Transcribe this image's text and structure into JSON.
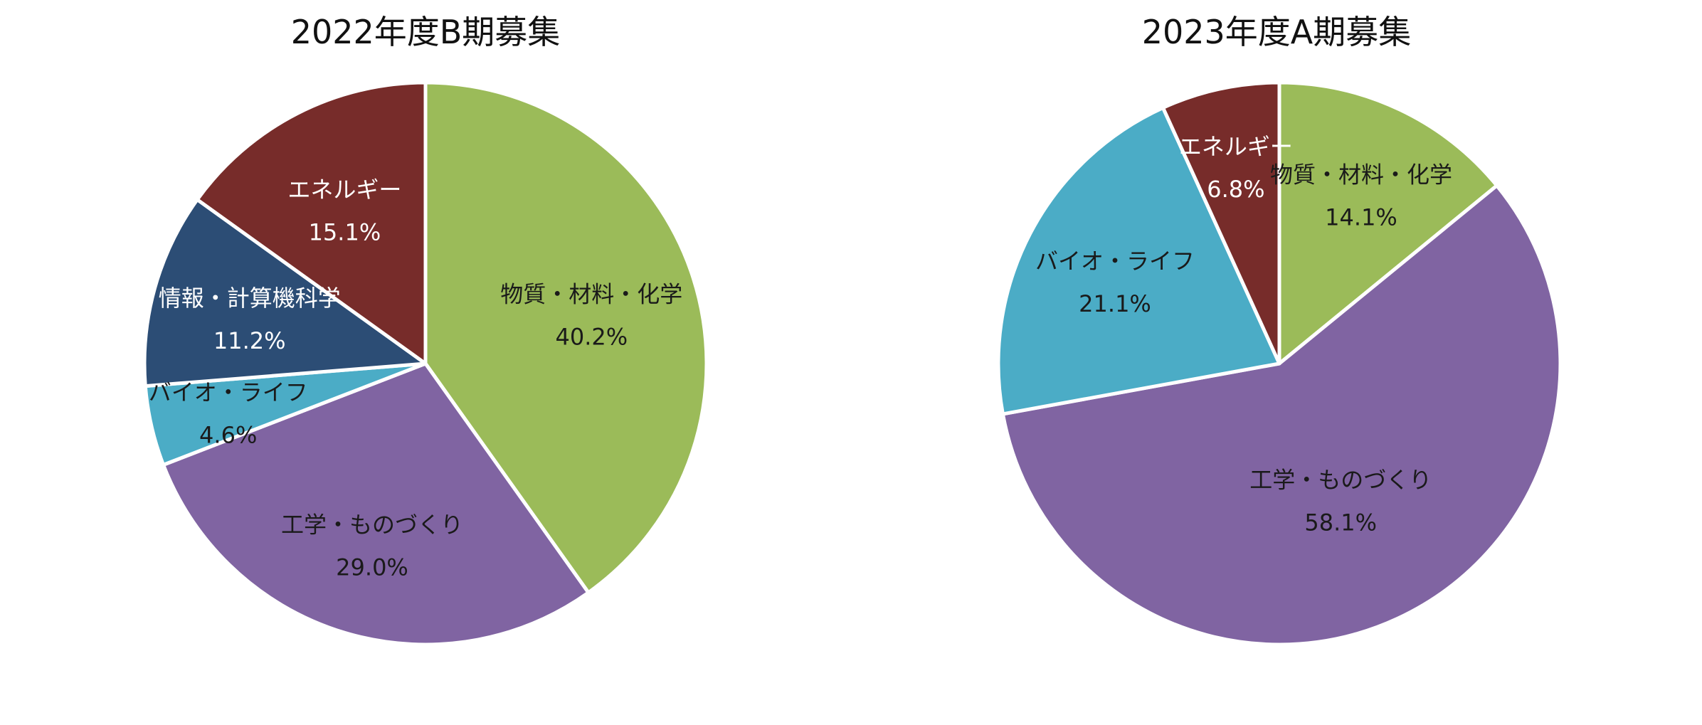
{
  "chart_data": [
    {
      "type": "pie",
      "title": "2022年度B期募集",
      "slices": [
        {
          "label": "物質・材料・化学",
          "value": 40.2,
          "value_label": "40.2%",
          "color": "#9BBB59",
          "text_color": "#1a1a1a"
        },
        {
          "label": "工学・ものづくり",
          "value": 29.0,
          "value_label": "29.0%",
          "color": "#8064A2",
          "text_color": "#1a1a1a"
        },
        {
          "label": "バイオ・ライフ",
          "value": 4.6,
          "value_label": "4.6%",
          "color": "#4BACC6",
          "text_color": "#1a1a1a"
        },
        {
          "label": "情報・計算機科学",
          "value": 11.2,
          "value_label": "11.2%",
          "color": "#2C4D75",
          "text_color": "#ffffff"
        },
        {
          "label": "エネルギー",
          "value": 15.1,
          "value_label": "15.1%",
          "color": "#772C2A",
          "text_color": "#ffffff"
        }
      ]
    },
    {
      "type": "pie",
      "title": "2023年度A期募集",
      "slices": [
        {
          "label": "物質・材料・化学",
          "value": 14.1,
          "value_label": "14.1%",
          "color": "#9BBB59",
          "text_color": "#1a1a1a"
        },
        {
          "label": "工学・ものづくり",
          "value": 58.1,
          "value_label": "58.1%",
          "color": "#8064A2",
          "text_color": "#1a1a1a"
        },
        {
          "label": "バイオ・ライフ",
          "value": 21.1,
          "value_label": "21.1%",
          "color": "#4BACC6",
          "text_color": "#1a1a1a"
        },
        {
          "label": "エネルギー",
          "value": 6.8,
          "value_label": "6.8%",
          "color": "#772C2A",
          "text_color": "#ffffff"
        }
      ]
    }
  ]
}
